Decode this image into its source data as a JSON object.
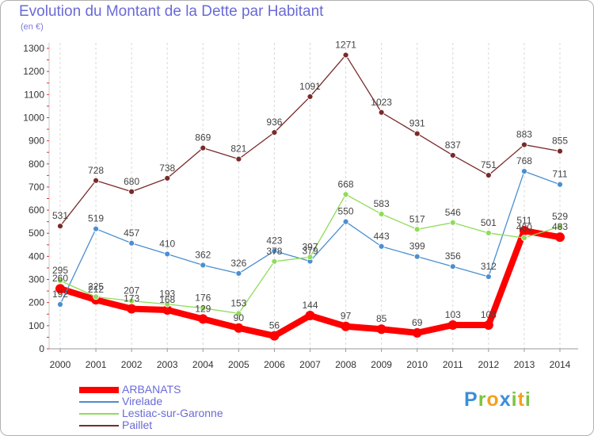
{
  "title": "Evolution du Montant de la Dette par Habitant",
  "subtitle": "(en €)",
  "logo": {
    "text": "Proxiti",
    "letters": [
      {
        "ch": "P",
        "color": "#3a8fd8"
      },
      {
        "ch": "r",
        "color": "#7cc242"
      },
      {
        "ch": "o",
        "color": "#f4a020"
      },
      {
        "ch": "x",
        "color": "#3a8fd8"
      },
      {
        "ch": "i",
        "color": "#7cc242"
      },
      {
        "ch": "t",
        "color": "#f4a020"
      },
      {
        "ch": "i",
        "color": "#7cc242"
      }
    ]
  },
  "chart_data": {
    "type": "line",
    "title": "Evolution du Montant de la Dette par Habitant",
    "ylabel": "(en €)",
    "xlabel": "",
    "categories": [
      "2000",
      "2001",
      "2002",
      "2003",
      "2004",
      "2005",
      "2006",
      "2007",
      "2008",
      "2009",
      "2010",
      "2011",
      "2012",
      "2013",
      "2014"
    ],
    "ylim": [
      0,
      1300
    ],
    "yticks": [
      0,
      100,
      200,
      300,
      400,
      500,
      600,
      700,
      800,
      900,
      1000,
      1100,
      1200,
      1300
    ],
    "grid": "vertical",
    "legend": "bottom-left",
    "series": [
      {
        "name": "ARBANATS",
        "color": "#ff0000",
        "values": [
          260,
          212,
          173,
          168,
          129,
          90,
          56,
          144,
          97,
          85,
          69,
          103,
          103,
          511,
          483
        ]
      },
      {
        "name": "Virelade",
        "color": "#4a8fd0",
        "values": [
          192,
          519,
          457,
          410,
          362,
          326,
          423,
          379,
          550,
          443,
          399,
          356,
          312,
          768,
          711
        ]
      },
      {
        "name": "Lestiac-sur-Garonne",
        "color": "#8fdc5a",
        "values": [
          295,
          225,
          207,
          193,
          176,
          153,
          378,
          397,
          668,
          583,
          517,
          546,
          501,
          480,
          529
        ]
      },
      {
        "name": "Paillet",
        "color": "#7a2a2a",
        "values": [
          531,
          728,
          680,
          738,
          869,
          821,
          936,
          1091,
          1271,
          1023,
          931,
          837,
          751,
          883,
          855
        ]
      }
    ]
  }
}
